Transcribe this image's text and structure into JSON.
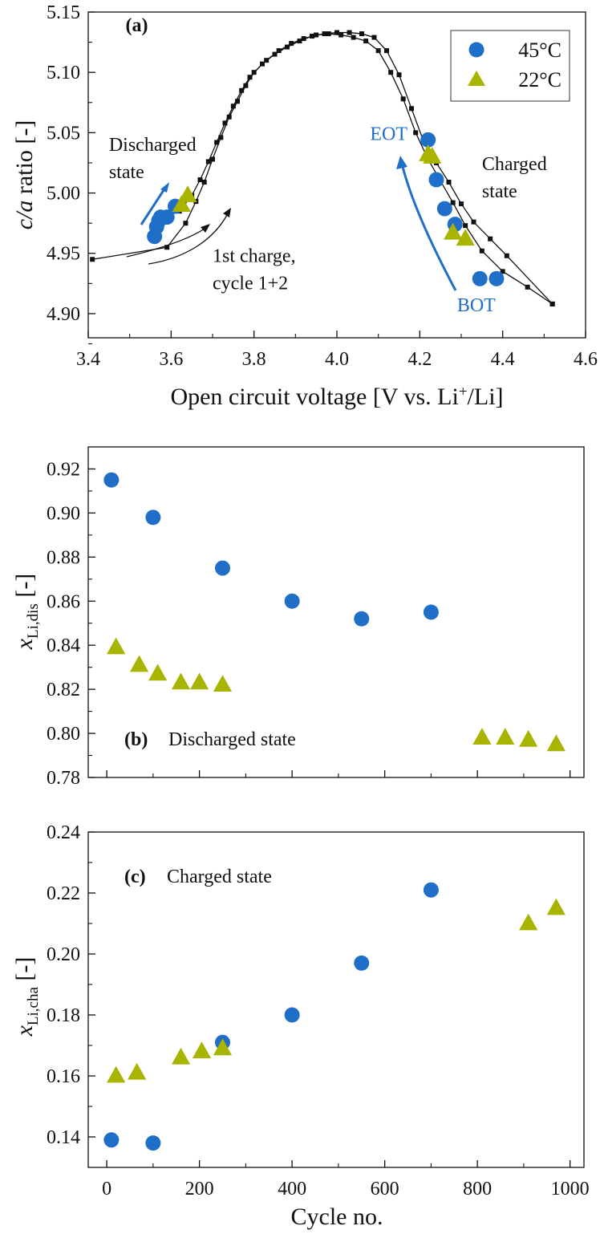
{
  "chart_data": [
    {
      "type": "scatter",
      "panel_label": "(a)",
      "xlabel": "Open circuit voltage [V vs. Li⁺/Li]",
      "ylabel_italic": "c/a",
      "ylabel_rest": " ratio [-]",
      "xlim": [
        3.4,
        4.6
      ],
      "ylim": [
        4.88,
        5.15
      ],
      "xticks": [
        3.4,
        3.6,
        3.8,
        4.0,
        4.2,
        4.4,
        4.6
      ],
      "xtick_labels": [
        "3.4",
        "3.6",
        "3.8",
        "4.0",
        "4.2",
        "4.4",
        "4.6"
      ],
      "yticks": [
        4.9,
        4.95,
        5.0,
        5.05,
        5.1,
        5.15
      ],
      "ytick_labels": [
        "4.90",
        "4.95",
        "5.00",
        "5.05",
        "5.10",
        "5.15"
      ],
      "grid": false,
      "legend": "top-right",
      "colors": {
        "45C": "#1f6fc8",
        "22C": "#a8b400",
        "curve": "#111111",
        "arrow_blue": "#1f6fc8"
      },
      "series": [
        {
          "name": "45°C",
          "marker": "circle",
          "x": [
            3.56,
            3.565,
            3.57,
            3.575,
            3.59,
            3.61,
            4.22,
            4.24,
            4.26,
            4.285,
            4.345,
            4.385
          ],
          "y": [
            4.964,
            4.972,
            4.977,
            4.98,
            4.98,
            4.989,
            5.044,
            5.011,
            4.987,
            4.974,
            4.929,
            4.929
          ]
        },
        {
          "name": "22°C",
          "marker": "triangle",
          "x": [
            3.625,
            3.64,
            4.22,
            4.23,
            4.28,
            4.31
          ],
          "y": [
            4.99,
            4.998,
            5.032,
            5.03,
            4.967,
            4.962
          ]
        }
      ],
      "reference_curves": [
        {
          "marker": "square",
          "x": [
            3.41,
            3.59,
            3.635,
            3.66,
            3.68,
            3.7,
            3.72,
            3.74,
            3.76,
            3.78,
            3.8,
            3.83,
            3.86,
            3.89,
            3.92,
            3.95,
            3.98,
            4.01,
            4.04,
            4.07,
            4.1,
            4.13,
            4.16,
            4.19,
            4.22,
            4.25,
            4.28,
            4.31,
            4.35,
            4.4,
            4.46,
            4.52
          ],
          "y": [
            4.945,
            4.955,
            4.975,
            4.993,
            5.009,
            5.028,
            5.046,
            5.063,
            5.076,
            5.089,
            5.1,
            5.11,
            5.118,
            5.124,
            5.128,
            5.131,
            5.132,
            5.131,
            5.129,
            5.126,
            5.118,
            5.1,
            5.078,
            5.05,
            5.028,
            5.01,
            4.992,
            4.973,
            4.952,
            4.935,
            4.922,
            4.908
          ]
        },
        {
          "marker": "square",
          "x": [
            3.62,
            3.65,
            3.67,
            3.69,
            3.71,
            3.73,
            3.75,
            3.77,
            3.79,
            3.82,
            3.85,
            3.88,
            3.91,
            3.94,
            3.97,
            4.0,
            4.03,
            4.06,
            4.09,
            4.12,
            4.15,
            4.18,
            4.21,
            4.24,
            4.27,
            4.3,
            4.33,
            4.37,
            4.41,
            4.52
          ],
          "y": [
            4.985,
            4.998,
            5.011,
            5.026,
            5.042,
            5.058,
            5.072,
            5.085,
            5.096,
            5.107,
            5.115,
            5.121,
            5.126,
            5.13,
            5.132,
            5.133,
            5.133,
            5.132,
            5.129,
            5.118,
            5.098,
            5.07,
            5.042,
            5.025,
            5.009,
            4.991,
            4.976,
            4.962,
            4.948,
            4.908
          ]
        }
      ],
      "annotations": [
        {
          "text": "(a)",
          "bold": true,
          "x": 3.49,
          "y": 5.134
        },
        {
          "lines": [
            "Discharged",
            "state"
          ],
          "x": 3.45,
          "y": 5.035
        },
        {
          "lines": [
            "1st charge,",
            "cycle 1+2"
          ],
          "x": 3.7,
          "y": 4.943
        },
        {
          "text": "EOT",
          "color": "#1f6fc8",
          "x": 4.08,
          "y": 5.044
        },
        {
          "lines": [
            "Charged",
            "state"
          ],
          "x": 4.35,
          "y": 5.019
        },
        {
          "text": "BOT",
          "color": "#1f6fc8",
          "x": 4.29,
          "y": 4.902
        }
      ]
    },
    {
      "type": "scatter",
      "panel_label": "(b)",
      "panel_title": "Discharged state",
      "xlabel": "",
      "ylabel_main": "x",
      "ylabel_sub": "Li,dis",
      "ylabel_rest": " [-]",
      "xlim": [
        -40,
        1030
      ],
      "ylim": [
        0.78,
        0.93
      ],
      "xticks": [
        0,
        200,
        400,
        600,
        800,
        1000
      ],
      "yticks": [
        0.78,
        0.8,
        0.82,
        0.84,
        0.86,
        0.88,
        0.9,
        0.92
      ],
      "ytick_labels": [
        "0.78",
        "0.80",
        "0.82",
        "0.84",
        "0.86",
        "0.88",
        "0.90",
        "0.92"
      ],
      "grid": false,
      "series": [
        {
          "name": "45°C",
          "marker": "circle",
          "x": [
            10,
            100,
            250,
            400,
            550,
            700
          ],
          "y": [
            0.915,
            0.898,
            0.875,
            0.86,
            0.852,
            0.855
          ]
        },
        {
          "name": "22°C",
          "marker": "triangle",
          "x": [
            20,
            70,
            110,
            160,
            200,
            250,
            810,
            860,
            910,
            970
          ],
          "y": [
            0.839,
            0.831,
            0.827,
            0.823,
            0.823,
            0.822,
            0.798,
            0.798,
            0.797,
            0.795
          ]
        }
      ]
    },
    {
      "type": "scatter",
      "panel_label": "(c)",
      "panel_title": "Charged state",
      "xlabel": "Cycle no.",
      "ylabel_main": "x",
      "ylabel_sub": "Li,cha",
      "ylabel_rest": " [-]",
      "xlim": [
        -40,
        1030
      ],
      "ylim": [
        0.13,
        0.24
      ],
      "xticks": [
        0,
        200,
        400,
        600,
        800,
        1000
      ],
      "xtick_labels": [
        "0",
        "200",
        "400",
        "600",
        "800",
        "1000"
      ],
      "yticks": [
        0.14,
        0.16,
        0.18,
        0.2,
        0.22,
        0.24
      ],
      "ytick_labels": [
        "0.14",
        "0.16",
        "0.18",
        "0.20",
        "0.22",
        "0.24"
      ],
      "grid": false,
      "series": [
        {
          "name": "45°C",
          "marker": "circle",
          "x": [
            10,
            100,
            250,
            400,
            550,
            700
          ],
          "y": [
            0.139,
            0.138,
            0.171,
            0.18,
            0.197,
            0.221
          ]
        },
        {
          "name": "22°C",
          "marker": "triangle",
          "x": [
            20,
            65,
            160,
            205,
            250,
            910,
            970
          ],
          "y": [
            0.16,
            0.161,
            0.166,
            0.168,
            0.169,
            0.21,
            0.215
          ]
        }
      ]
    }
  ]
}
